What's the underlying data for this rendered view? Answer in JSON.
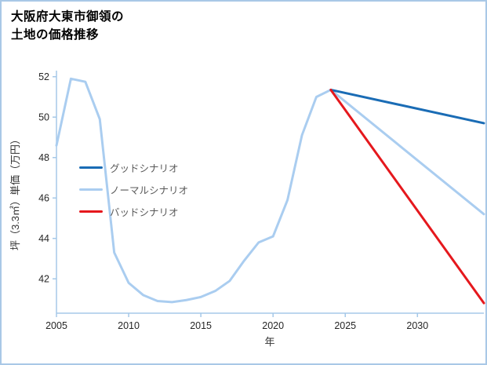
{
  "title": {
    "line1": "大阪府大東市御領の",
    "line2": "土地の価格推移"
  },
  "border_color": "#a9c8e6",
  "chart_data": {
    "type": "line",
    "title": "大阪府大東市御領の土地の価格推移",
    "xlabel": "年",
    "ylabel": "坪（3.3㎡）単価（万円）",
    "xlim": [
      2005,
      2034.6
    ],
    "ylim": [
      40.3,
      52.3
    ],
    "xticks": [
      2005,
      2010,
      2015,
      2020,
      2025,
      2030
    ],
    "yticks": [
      42,
      44,
      46,
      48,
      50,
      52
    ],
    "grid": false,
    "legend_position": "center-left",
    "axis_color": "#a5c8e8",
    "tick_label_color": "#262626",
    "legend_text_color": "#595959",
    "draw_order": [
      1,
      0,
      2
    ],
    "series": [
      {
        "name": "グッドシナリオ",
        "color": "#1a6cb5",
        "width": 3,
        "x": [
          2024,
          2034.6
        ],
        "y": [
          51.35,
          49.7
        ]
      },
      {
        "name": "ノーマルシナリオ",
        "color": "#aacdf0",
        "width": 3,
        "x": [
          2005,
          2006,
          2007,
          2008,
          2009,
          2010,
          2011,
          2012,
          2013,
          2014,
          2015,
          2016,
          2017,
          2018,
          2019,
          2020,
          2021,
          2022,
          2023,
          2024,
          2034.6
        ],
        "y": [
          48.6,
          51.9,
          51.75,
          49.9,
          43.3,
          41.8,
          41.2,
          40.9,
          40.85,
          40.95,
          41.1,
          41.4,
          41.9,
          42.9,
          43.8,
          44.1,
          45.9,
          49.1,
          51.0,
          51.35,
          45.2
        ]
      },
      {
        "name": "バッドシナリオ",
        "color": "#e5181d",
        "width": 3,
        "x": [
          2024,
          2034.6
        ],
        "y": [
          51.35,
          40.8
        ]
      }
    ]
  }
}
